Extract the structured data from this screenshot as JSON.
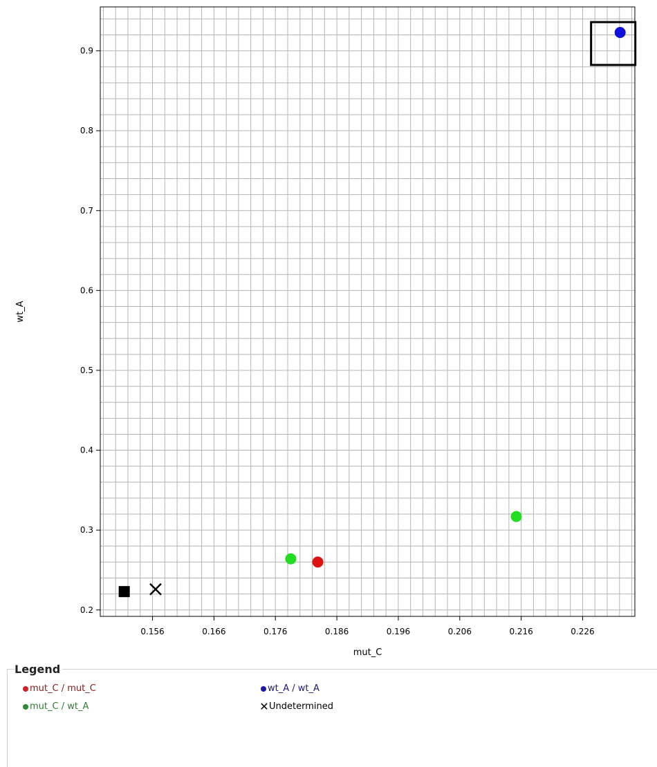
{
  "chart_data": {
    "type": "scatter",
    "xlabel": "mut_C",
    "ylabel": "wt_A",
    "xlim": [
      0.1475,
      0.2345
    ],
    "ylim": [
      0.192,
      0.955
    ],
    "x_ticks": [
      0.156,
      0.166,
      0.176,
      0.186,
      0.196,
      0.206,
      0.216,
      0.226
    ],
    "y_ticks": [
      0.2,
      0.3,
      0.4,
      0.5,
      0.6,
      0.7,
      0.8,
      0.9
    ],
    "grid": true,
    "series": [
      {
        "name": "mut_C / mut_C",
        "color": "#dd1111",
        "marker": "circle",
        "points": [
          [
            0.1829,
            0.26
          ]
        ]
      },
      {
        "name": "mut_C / wt_A",
        "color": "#22dd22",
        "marker": "circle",
        "points": [
          [
            0.1785,
            0.264
          ],
          [
            0.2152,
            0.317
          ]
        ]
      },
      {
        "name": "wt_A / wt_A",
        "color": "#1111dd",
        "marker": "circle",
        "points": [
          [
            0.2321,
            0.923
          ]
        ],
        "highlighted": true
      },
      {
        "name": "Undetermined",
        "color": "#000000",
        "marker": "x",
        "points": [
          [
            0.1565,
            0.226
          ]
        ]
      },
      {
        "name": "",
        "color": "#000000",
        "marker": "square",
        "points": [
          [
            0.1514,
            0.223
          ]
        ]
      }
    ]
  },
  "legend": {
    "title": "Legend",
    "items": [
      {
        "label": "mut_C / mut_C",
        "color": "#8b1a1a",
        "dot_color": "#cc2222",
        "marker": "dot"
      },
      {
        "label": "mut_C / wt_A",
        "color": "#2e7d2e",
        "dot_color": "#2e8b2e",
        "marker": "dot"
      },
      {
        "label": "wt_A / wt_A",
        "color": "#1a1a6e",
        "dot_color": "#1a1aaa",
        "marker": "dot"
      },
      {
        "label": "Undetermined",
        "color": "#000000",
        "dot_color": "#000000",
        "marker": "x"
      }
    ]
  }
}
